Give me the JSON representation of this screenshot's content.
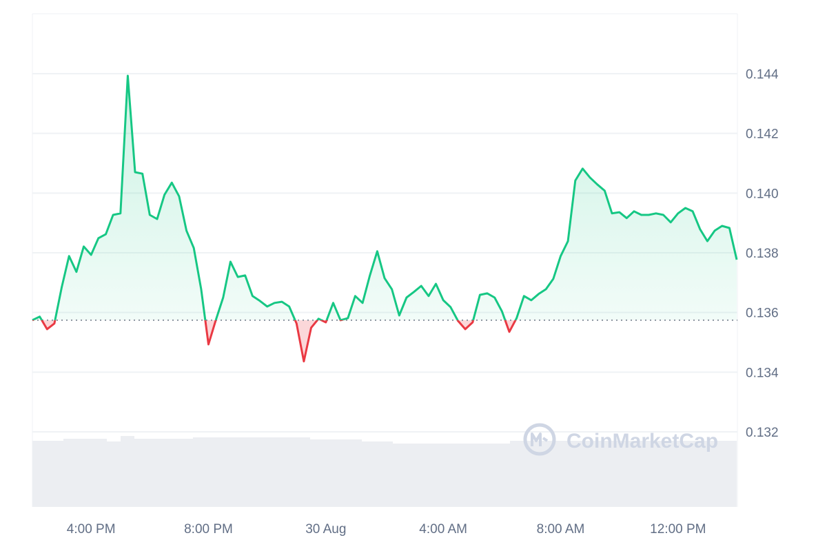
{
  "chart_data": {
    "type": "line",
    "title": "",
    "xlabel": "",
    "ylabel": "",
    "ylim": [
      0.1305,
      0.1465
    ],
    "grid": true,
    "reference_line": 0.13574,
    "colors": {
      "up": "#16c784",
      "down": "#ea3943",
      "grid": "#eff2f5",
      "volume": "#eceef2",
      "tick_text": "#616e85"
    },
    "watermark": "CoinMarketCap",
    "y_ticks": [
      "0.132",
      "0.134",
      "0.136",
      "0.138",
      "0.140",
      "0.142",
      "0.144"
    ],
    "x_ticks": [
      {
        "label": "4:00 PM",
        "at": "16:00"
      },
      {
        "label": "8:00 PM",
        "at": "20:00"
      },
      {
        "label": "30 Aug",
        "at": "00:00"
      },
      {
        "label": "4:00 AM",
        "at": "04:00"
      },
      {
        "label": "8:00 AM",
        "at": "08:00"
      },
      {
        "label": "12:00 PM",
        "at": "12:00"
      }
    ],
    "x": [
      "14:00",
      "14:15",
      "14:30",
      "14:45",
      "15:00",
      "15:15",
      "15:30",
      "15:45",
      "16:00",
      "16:15",
      "16:30",
      "16:45",
      "17:00",
      "17:15",
      "17:30",
      "17:45",
      "18:00",
      "18:15",
      "18:30",
      "18:45",
      "19:00",
      "19:15",
      "19:30",
      "19:45",
      "20:00",
      "20:15",
      "20:30",
      "20:45",
      "21:00",
      "21:15",
      "21:30",
      "21:45",
      "22:00",
      "22:15",
      "22:30",
      "22:45",
      "23:00",
      "23:15",
      "23:30",
      "23:45",
      "00:00",
      "00:15",
      "00:30",
      "00:45",
      "01:00",
      "01:15",
      "01:30",
      "01:45",
      "02:00",
      "02:15",
      "02:30",
      "02:45",
      "03:00",
      "03:15",
      "03:30",
      "03:45",
      "04:00",
      "04:15",
      "04:30",
      "04:45",
      "05:00",
      "05:15",
      "05:30",
      "05:45",
      "06:00",
      "06:15",
      "06:30",
      "06:45",
      "07:00",
      "07:15",
      "07:30",
      "07:45",
      "08:00",
      "08:15",
      "08:30",
      "08:45",
      "09:00",
      "09:15",
      "09:30",
      "09:45",
      "10:00",
      "10:15",
      "10:30",
      "10:45",
      "11:00",
      "11:15",
      "11:30",
      "11:45",
      "12:00",
      "12:15",
      "12:30",
      "12:45",
      "13:00",
      "13:15",
      "13:30",
      "13:45",
      "14:00"
    ],
    "values": [
      0.13574,
      0.13586,
      0.13544,
      0.13563,
      0.13685,
      0.13789,
      0.13736,
      0.13821,
      0.13793,
      0.13849,
      0.13862,
      0.13927,
      0.13932,
      0.14393,
      0.1407,
      0.14065,
      0.13927,
      0.13913,
      0.13994,
      0.14035,
      0.13989,
      0.13874,
      0.13816,
      0.13678,
      0.13493,
      0.13574,
      0.1365,
      0.1377,
      0.13719,
      0.13724,
      0.13655,
      0.13639,
      0.1362,
      0.13632,
      0.13636,
      0.1362,
      0.13563,
      0.13436,
      0.13549,
      0.13579,
      0.13567,
      0.13632,
      0.13574,
      0.13581,
      0.13655,
      0.13632,
      0.13724,
      0.13805,
      0.13715,
      0.13678,
      0.1359,
      0.1365,
      0.13669,
      0.13689,
      0.13655,
      0.13696,
      0.13641,
      0.13618,
      0.13572,
      0.13544,
      0.13567,
      0.13659,
      0.13664,
      0.1365,
      0.13604,
      0.13535,
      0.13581,
      0.13655,
      0.13641,
      0.13662,
      0.13678,
      0.13713,
      0.13789,
      0.13839,
      0.14042,
      0.14082,
      0.14052,
      0.14029,
      0.14008,
      0.13932,
      0.13936,
      0.13916,
      0.13939,
      0.13927,
      0.13927,
      0.13932,
      0.13927,
      0.13902,
      0.13932,
      0.1395,
      0.13939,
      0.13879,
      0.13839,
      0.13874,
      0.1389,
      0.13883,
      0.13777
    ]
  }
}
